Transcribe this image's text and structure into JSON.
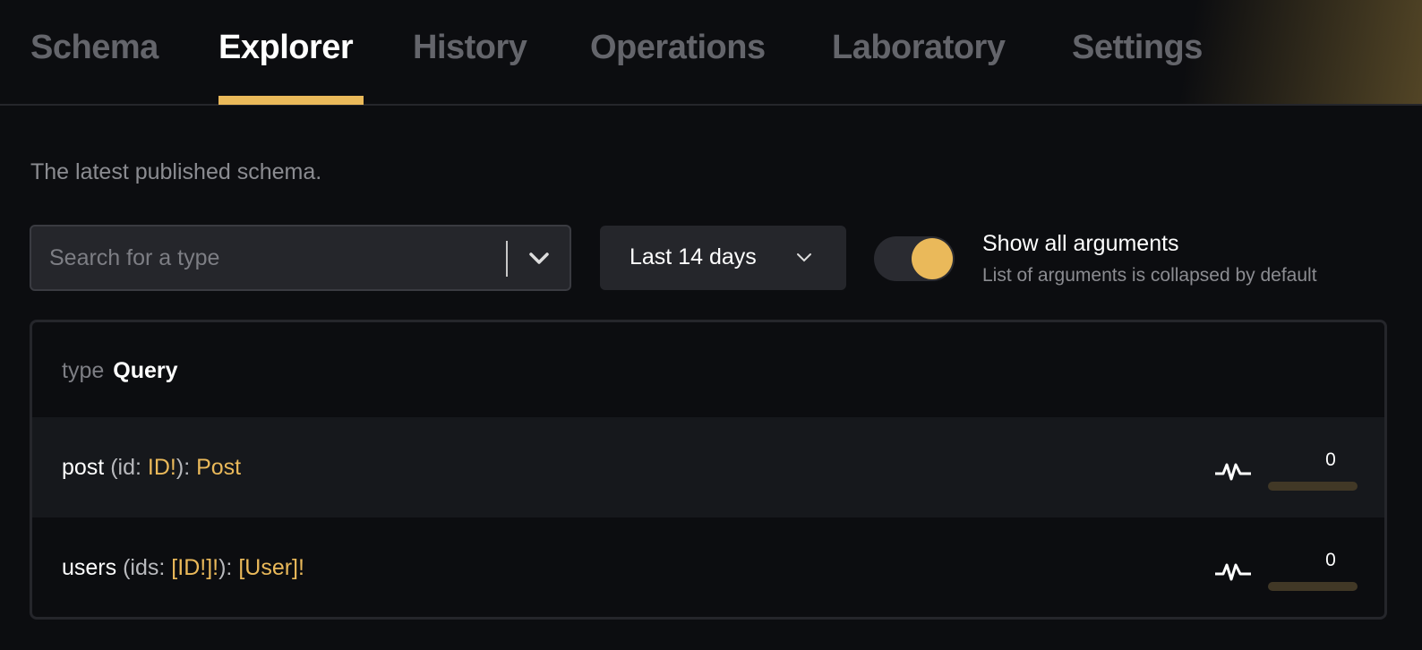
{
  "tabs": [
    {
      "label": "Schema"
    },
    {
      "label": "Explorer",
      "active": true
    },
    {
      "label": "History"
    },
    {
      "label": "Operations"
    },
    {
      "label": "Laboratory"
    },
    {
      "label": "Settings"
    }
  ],
  "description": "The latest published schema.",
  "search": {
    "placeholder": "Search for a type",
    "value": ""
  },
  "range": {
    "label": "Last 14 days"
  },
  "toggle": {
    "label": "Show all arguments",
    "sublabel": "List of arguments is collapsed by default",
    "on": true
  },
  "type": {
    "keyword": "type",
    "name": "Query"
  },
  "fields": [
    {
      "name": "post",
      "open": " (",
      "arg": "id",
      "colon": ": ",
      "argType": "ID!",
      "close": "): ",
      "returnType": "Post",
      "count": "0",
      "usage": 0
    },
    {
      "name": "users",
      "open": " (",
      "arg": "ids",
      "colon": ": ",
      "argType": "[ID!]!",
      "close": "): ",
      "returnType": "[User]!",
      "count": "0",
      "usage": 0
    }
  ],
  "colors": {
    "accent": "#eab95a",
    "background": "#0c0d10"
  }
}
